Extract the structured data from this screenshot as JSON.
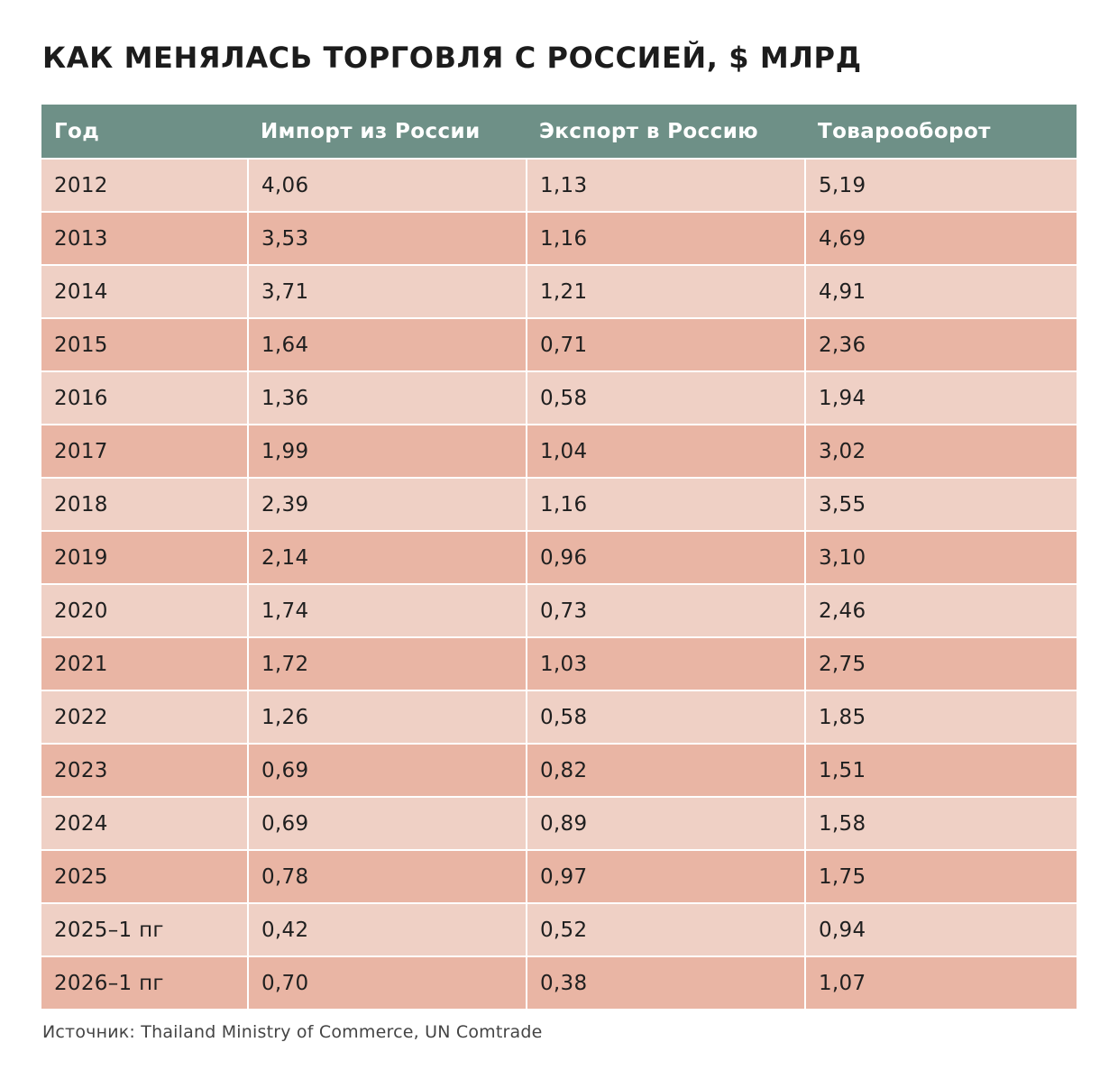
{
  "chart_data": {
    "type": "table",
    "title": "КАК МЕНЯЛАСЬ ТОРГОВЛЯ С РОССИЕЙ, $ МЛРД",
    "columns": [
      "Год",
      "Импорт из России",
      "Экспорт в Россию",
      "Товарооборот"
    ],
    "rows": [
      [
        "2012",
        "4,06",
        "1,13",
        "5,19"
      ],
      [
        "2013",
        "3,53",
        "1,16",
        "4,69"
      ],
      [
        "2014",
        "3,71",
        "1,21",
        "4,91"
      ],
      [
        "2015",
        "1,64",
        "0,71",
        "2,36"
      ],
      [
        "2016",
        "1,36",
        "0,58",
        "1,94"
      ],
      [
        "2017",
        "1,99",
        "1,04",
        "3,02"
      ],
      [
        "2018",
        "2,39",
        "1,16",
        "3,55"
      ],
      [
        "2019",
        "2,14",
        "0,96",
        "3,10"
      ],
      [
        "2020",
        "1,74",
        "0,73",
        "2,46"
      ],
      [
        "2021",
        "1,72",
        "1,03",
        "2,75"
      ],
      [
        "2022",
        "1,26",
        "0,58",
        "1,85"
      ],
      [
        "2023",
        "0,69",
        "0,82",
        "1,51"
      ],
      [
        "2024",
        "0,69",
        "0,89",
        "1,58"
      ],
      [
        "2025",
        "0,78",
        "0,97",
        "1,75"
      ],
      [
        "2025–1 пг",
        "0,42",
        "0,52",
        "0,94"
      ],
      [
        "2026–1 пг",
        "0,70",
        "0,38",
        "1,07"
      ]
    ],
    "source": "Источник: Thailand Ministry of Commerce, UN Comtrade",
    "colors": {
      "header_bg": "#6e9087",
      "header_text": "#ffffff",
      "row_light": "#efd0c5",
      "row_dark": "#e9b5a4"
    }
  }
}
